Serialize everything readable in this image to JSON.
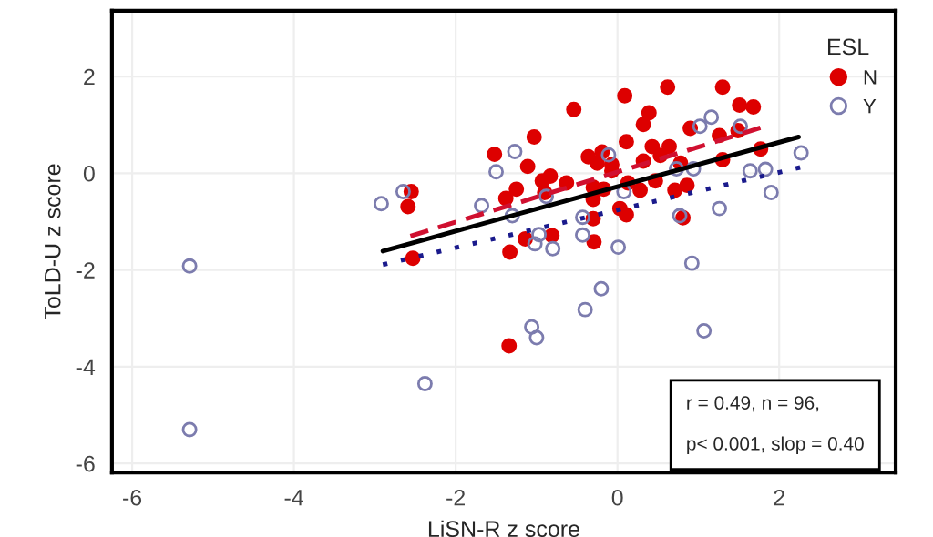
{
  "chart_data": {
    "type": "scatter",
    "xlabel": "LiSN-R z score",
    "ylabel": "ToLD-U z score",
    "legend_title": "ESL",
    "legend": "top right",
    "grid": true,
    "xlim": [
      -6.25,
      3.44
    ],
    "ylim": [
      -6.19,
      3.36
    ],
    "xticks": [
      -6,
      -4,
      -2,
      0,
      2
    ],
    "yticks": [
      -6,
      -4,
      -2,
      0,
      2
    ],
    "annotations": [
      "r = 0.49, n = 96,\n\np< 0.001, slop = 0.40"
    ],
    "series": [
      {
        "name": "N",
        "marker": "circle",
        "color": "#dd0000",
        "x": [
          -2.55,
          -2.59,
          -2.53,
          -1.52,
          -1.03,
          -1.11,
          -1.25,
          -1.38,
          -1.33,
          -1.14,
          -0.93,
          -0.83,
          -0.9,
          -0.81,
          -0.63,
          -0.54,
          -0.36,
          -0.19,
          -0.25,
          -0.07,
          -0.07,
          -0.3,
          -0.17,
          -0.3,
          -0.3,
          -0.29,
          0.03,
          0.11,
          0.09,
          0.11,
          0.13,
          0.28,
          0.32,
          0.32,
          0.39,
          0.43,
          0.47,
          0.53,
          0.62,
          0.64,
          0.71,
          0.78,
          0.81,
          0.86,
          0.9,
          1.3,
          1.51,
          1.68,
          1.26,
          1.3,
          1.49,
          1.77,
          -1.34
        ],
        "values": [
          -0.38,
          -0.69,
          -1.76,
          0.39,
          0.75,
          0.14,
          -0.33,
          -0.52,
          -1.63,
          -1.36,
          -0.16,
          -0.06,
          -0.4,
          -1.29,
          -0.2,
          1.32,
          0.34,
          0.44,
          0.21,
          0.18,
          0.05,
          -0.29,
          -0.33,
          -0.54,
          -0.94,
          -1.42,
          -0.73,
          -0.86,
          1.6,
          0.65,
          -0.2,
          -0.35,
          0.25,
          1.01,
          1.25,
          0.55,
          -0.16,
          0.37,
          1.78,
          0.55,
          -0.35,
          0.21,
          -0.92,
          -0.25,
          0.93,
          1.78,
          1.41,
          1.37,
          0.78,
          0.28,
          0.88,
          0.5,
          -3.57
        ]
      },
      {
        "name": "Y",
        "marker": "circle",
        "color": "#7c7cae",
        "x": [
          -2.92,
          -2.65,
          -5.29,
          -1.68,
          -1.5,
          -1.27,
          -1.3,
          -0.88,
          -1.02,
          -0.97,
          -0.8,
          -0.43,
          -0.43,
          -0.11,
          0.08,
          0.01,
          0.73,
          0.94,
          0.77,
          0.92,
          1.02,
          1.16,
          1.26,
          1.52,
          1.64,
          1.83,
          1.9,
          2.27,
          -5.29,
          -2.38,
          -1.06,
          -1.0,
          -0.2,
          -0.4,
          1.07
        ],
        "values": [
          -0.63,
          -0.38,
          -1.92,
          -0.67,
          0.03,
          0.45,
          -0.88,
          -0.48,
          -1.46,
          -1.27,
          -1.56,
          -0.91,
          -1.28,
          0.38,
          -0.38,
          -1.53,
          0.09,
          0.09,
          -0.88,
          -1.86,
          0.97,
          1.16,
          -0.73,
          0.97,
          0.05,
          0.08,
          -0.4,
          0.42,
          -5.3,
          -4.35,
          -3.18,
          -3.4,
          -2.39,
          -2.82,
          -3.26
        ]
      },
      {
        "type": "line",
        "line_style": "solid",
        "color": "#000000",
        "x": [
          -2.9,
          2.24
        ],
        "values": [
          -1.61,
          0.75
        ]
      },
      {
        "type": "line",
        "line_style": "dashed",
        "color": "#d01030",
        "x": [
          -2.56,
          1.77
        ],
        "values": [
          -1.3,
          0.94
        ]
      },
      {
        "type": "line",
        "line_style": "dotted",
        "color": "#1a1a8c",
        "x": [
          -2.9,
          2.26
        ],
        "values": [
          -1.89,
          0.12
        ]
      }
    ]
  }
}
